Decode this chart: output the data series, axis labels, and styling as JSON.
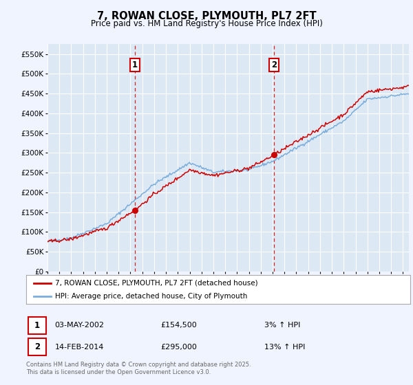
{
  "title": "7, ROWAN CLOSE, PLYMOUTH, PL7 2FT",
  "subtitle": "Price paid vs. HM Land Registry's House Price Index (HPI)",
  "background_color": "#f0f4ff",
  "plot_bg_color": "#dde8f5",
  "grid_color": "#ffffff",
  "ylabel_ticks": [
    "£0",
    "£50K",
    "£100K",
    "£150K",
    "£200K",
    "£250K",
    "£300K",
    "£350K",
    "£400K",
    "£450K",
    "£500K",
    "£550K"
  ],
  "ytick_values": [
    0,
    50000,
    100000,
    150000,
    200000,
    250000,
    300000,
    350000,
    400000,
    450000,
    500000,
    550000
  ],
  "ylim": [
    0,
    575000
  ],
  "xlim_start": 1995.0,
  "xlim_end": 2025.5,
  "transaction1_date": 2002.35,
  "transaction1_label": "1",
  "transaction1_price": 154500,
  "transaction1_date_str": "03-MAY-2002",
  "transaction1_pct": "3% ↑ HPI",
  "transaction2_date": 2014.12,
  "transaction2_label": "2",
  "transaction2_price": 295000,
  "transaction2_date_str": "14-FEB-2014",
  "transaction2_pct": "13% ↑ HPI",
  "legend_line1": "7, ROWAN CLOSE, PLYMOUTH, PL7 2FT (detached house)",
  "legend_line2": "HPI: Average price, detached house, City of Plymouth",
  "footnote": "Contains HM Land Registry data © Crown copyright and database right 2025.\nThis data is licensed under the Open Government Licence v3.0.",
  "property_line_color": "#cc0000",
  "hpi_line_color": "#7aadda",
  "vline_color": "#cc0000",
  "label_box_color": "#cc0000"
}
